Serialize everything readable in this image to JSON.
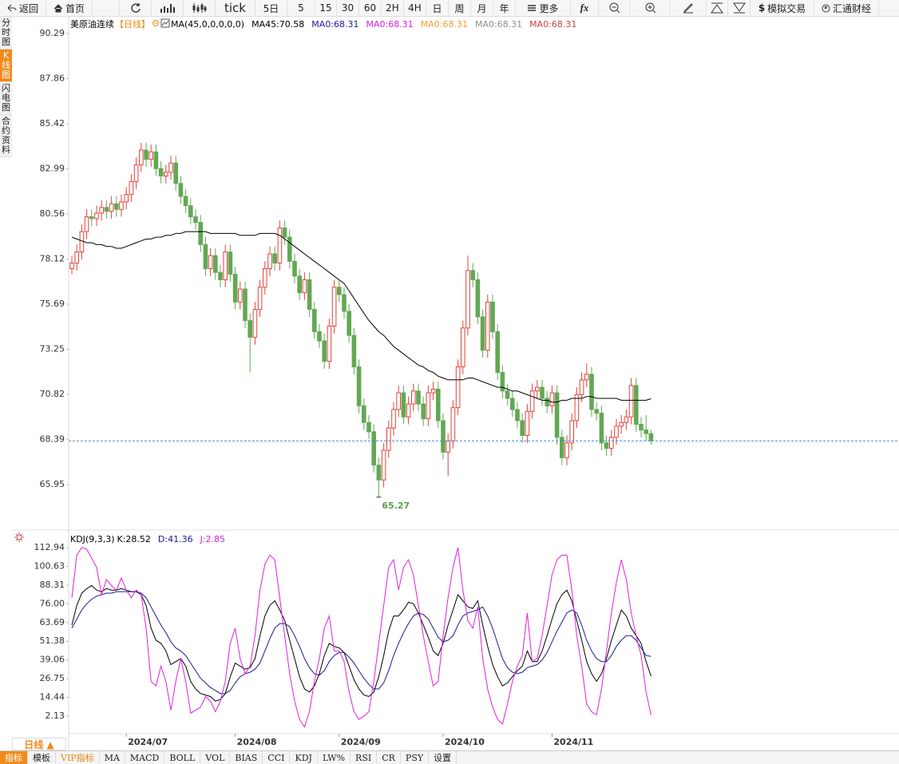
{
  "toolbar": [
    "返回",
    "首页",
    "tick",
    "5日",
    "5",
    "15",
    "30",
    "60",
    "2H",
    "4H",
    "日",
    "周",
    "月",
    "年",
    "更多",
    "模拟交易",
    "汇通财经"
  ],
  "side_tabs": [
    "分时图",
    "K线图",
    "闪电图",
    "合约资料"
  ],
  "bottom": {
    "period": "日线 ▲",
    "tabs": [
      "指标",
      "模板",
      "VIP指标",
      "MA",
      "MACD",
      "BOLL",
      "VOL",
      "BIAS",
      "CCI",
      "KDJ",
      "LW%",
      "RSI",
      "CR",
      "PSY",
      "设置"
    ]
  },
  "chart_data": [
    {
      "type": "candlestick",
      "title": "美原油连续",
      "period": "【日线】",
      "legend": [
        {
          "text": "MA(45,0,0,0,0,0)",
          "color": "#000000"
        },
        {
          "text": "MA0:68.31",
          "color": "#1a1aa6"
        },
        {
          "text": "MA0:68.31",
          "color": "#e020e0"
        },
        {
          "text": "MA0:68.31",
          "color": "#f0a030"
        },
        {
          "text": "MA0:68.31",
          "color": "#909090"
        },
        {
          "text": "MA0:68.31",
          "color": "#d04040"
        }
      ],
      "up_color": "#e0433b",
      "down_color": "#62a854",
      "categories": [
        null,
        null,
        null,
        null,
        null,
        null,
        null,
        null,
        null,
        null,
        null,
        "2024/07",
        null,
        null,
        null,
        null,
        null,
        null,
        null,
        null,
        null,
        null,
        null,
        null,
        null,
        null,
        null,
        null,
        null,
        null,
        null,
        null,
        null,
        "2024/08",
        null,
        null,
        null,
        null,
        null,
        null,
        null,
        null,
        null,
        null,
        null,
        null,
        null,
        null,
        null,
        null,
        null,
        null,
        null,
        null,
        "2024/09",
        null,
        null,
        null,
        null,
        null,
        null,
        null,
        null,
        null,
        null,
        null,
        null,
        null,
        null,
        null,
        null,
        null,
        null,
        null,
        null,
        "2024/10",
        null,
        null,
        null,
        null,
        null,
        null,
        null,
        null,
        null,
        null,
        null,
        null,
        null,
        null,
        null,
        null,
        null,
        null,
        null,
        null,
        null,
        "2024/11",
        null,
        null,
        null,
        null,
        null,
        null,
        null,
        null,
        null,
        null,
        null,
        null,
        null,
        null,
        null,
        null,
        null,
        null,
        null,
        null
      ],
      "open": [
        77.6,
        77.9,
        78.5,
        79.6,
        80.4,
        80.3,
        80.6,
        80.9,
        80.7,
        81.1,
        80.8,
        81.2,
        81.6,
        82.3,
        83.2,
        84.0,
        83.5,
        83.9,
        83.0,
        82.6,
        82.8,
        83.3,
        82.2,
        81.5,
        81.0,
        80.4,
        80.1,
        78.9,
        77.6,
        78.3,
        77.4,
        77.0,
        78.5,
        77.3,
        75.8,
        76.5,
        74.8,
        73.9,
        75.4,
        76.6,
        77.6,
        78.4,
        77.9,
        79.8,
        79.3,
        78.0,
        77.2,
        76.3,
        77.0,
        75.4,
        74.2,
        73.7,
        72.6,
        74.5,
        76.6,
        76.2,
        75.3,
        74.0,
        72.3,
        70.2,
        69.3,
        68.8,
        67.0,
        66.2,
        67.8,
        69.0,
        70.0,
        70.9,
        69.6,
        70.3,
        71.0,
        70.3,
        69.5,
        70.9,
        71.1,
        69.4,
        67.7,
        68.3,
        70.1,
        72.3,
        74.4,
        77.5,
        77.0,
        75.0,
        73.2,
        75.8,
        74.2,
        72.0,
        71.0,
        70.6,
        70.0,
        69.4,
        68.6,
        69.9,
        71.0,
        71.2,
        70.6,
        70.2,
        70.9,
        68.5,
        67.4,
        68.2,
        69.4,
        70.8,
        71.6,
        71.9,
        70.0,
        69.8,
        68.2,
        67.9,
        68.5,
        69.1,
        69.3,
        69.6,
        71.3,
        69.2,
        68.9,
        68.7
      ],
      "high": [
        78.3,
        78.9,
        80.0,
        80.8,
        80.8,
        81.0,
        81.3,
        81.3,
        81.5,
        81.5,
        81.6,
        82.0,
        82.7,
        83.6,
        84.4,
        84.4,
        84.3,
        84.3,
        83.4,
        83.2,
        83.7,
        83.7,
        82.6,
        81.9,
        81.4,
        80.8,
        80.5,
        79.3,
        78.7,
        78.7,
        77.8,
        78.9,
        78.9,
        77.7,
        76.9,
        76.9,
        75.2,
        75.8,
        77.0,
        78.0,
        78.8,
        78.8,
        80.2,
        80.2,
        79.7,
        78.4,
        77.6,
        77.4,
        77.4,
        75.8,
        74.6,
        74.1,
        74.9,
        77.0,
        77.0,
        76.6,
        75.7,
        74.4,
        72.7,
        70.6,
        69.7,
        69.2,
        67.4,
        68.2,
        69.4,
        70.4,
        71.3,
        71.3,
        70.7,
        71.4,
        71.4,
        70.7,
        71.3,
        71.5,
        71.5,
        69.8,
        68.7,
        70.5,
        72.7,
        74.8,
        78.3,
        77.9,
        77.4,
        75.4,
        76.2,
        76.2,
        74.6,
        72.4,
        71.4,
        71.0,
        70.4,
        69.8,
        70.3,
        71.4,
        71.6,
        71.6,
        71.0,
        71.3,
        71.3,
        68.9,
        68.6,
        69.8,
        71.2,
        72.0,
        72.5,
        72.3,
        70.4,
        70.2,
        68.6,
        68.9,
        69.5,
        69.7,
        70.0,
        71.7,
        71.7,
        69.6,
        69.7,
        68.9
      ],
      "low": [
        77.3,
        77.5,
        78.1,
        79.2,
        79.9,
        79.9,
        80.2,
        80.3,
        80.3,
        80.4,
        80.4,
        80.8,
        81.2,
        81.9,
        82.8,
        83.1,
        83.1,
        82.6,
        82.2,
        82.2,
        82.4,
        81.8,
        81.1,
        80.6,
        80.0,
        79.7,
        78.5,
        77.2,
        77.2,
        77.0,
        76.6,
        76.6,
        76.9,
        75.4,
        75.4,
        74.4,
        72.0,
        73.5,
        75.0,
        76.2,
        77.2,
        77.5,
        77.5,
        78.9,
        77.6,
        76.8,
        75.9,
        75.9,
        75.0,
        73.8,
        73.3,
        72.2,
        72.2,
        74.1,
        75.8,
        74.9,
        73.6,
        71.9,
        69.8,
        68.9,
        68.4,
        66.6,
        65.27,
        65.8,
        67.4,
        68.6,
        69.6,
        69.2,
        69.2,
        69.9,
        69.9,
        69.1,
        69.1,
        70.5,
        69.0,
        67.3,
        66.4,
        67.9,
        69.7,
        71.9,
        74.0,
        76.6,
        74.6,
        72.8,
        72.8,
        73.8,
        71.6,
        70.6,
        70.2,
        69.6,
        69.0,
        68.2,
        68.2,
        69.5,
        70.6,
        70.2,
        69.8,
        69.8,
        68.1,
        67.0,
        67.0,
        67.8,
        69.0,
        70.4,
        71.2,
        69.6,
        69.4,
        67.8,
        67.5,
        67.5,
        68.1,
        68.7,
        68.9,
        69.2,
        68.8,
        68.5,
        68.3,
        68.1
      ],
      "close": [
        77.9,
        78.5,
        79.6,
        80.4,
        80.3,
        80.6,
        80.9,
        80.7,
        81.1,
        80.8,
        81.2,
        81.6,
        82.3,
        83.2,
        84.0,
        83.5,
        83.9,
        83.0,
        82.6,
        82.8,
        83.3,
        82.2,
        81.5,
        81.0,
        80.4,
        80.1,
        78.9,
        77.6,
        78.3,
        77.4,
        77.0,
        78.5,
        77.3,
        75.8,
        76.5,
        74.8,
        73.9,
        75.4,
        76.6,
        77.6,
        78.4,
        77.9,
        79.8,
        79.3,
        78.0,
        77.2,
        76.3,
        77.0,
        75.4,
        74.2,
        73.7,
        72.6,
        74.5,
        76.6,
        76.2,
        75.3,
        74.0,
        72.3,
        70.2,
        69.3,
        68.8,
        67.0,
        66.2,
        67.8,
        69.0,
        70.0,
        70.9,
        69.6,
        70.3,
        71.0,
        70.3,
        69.5,
        70.9,
        71.1,
        69.4,
        67.7,
        68.3,
        70.1,
        72.3,
        74.4,
        77.5,
        77.0,
        75.0,
        73.2,
        75.8,
        74.2,
        72.0,
        71.0,
        70.6,
        70.0,
        69.4,
        68.6,
        69.9,
        71.0,
        71.2,
        70.6,
        70.2,
        70.9,
        68.5,
        67.4,
        68.2,
        69.4,
        70.8,
        71.6,
        71.9,
        70.0,
        69.8,
        68.2,
        67.9,
        68.5,
        69.1,
        69.3,
        69.6,
        71.3,
        69.2,
        68.9,
        68.7,
        68.31
      ],
      "series": [
        {
          "name": "MA45:70.58",
          "color": "#000000",
          "values": [
            79.3,
            79.2,
            79.1,
            79.0,
            79.0,
            78.9,
            78.9,
            78.8,
            78.8,
            78.7,
            78.7,
            78.8,
            78.9,
            79.0,
            79.1,
            79.2,
            79.2,
            79.3,
            79.3,
            79.4,
            79.4,
            79.5,
            79.5,
            79.6,
            79.6,
            79.6,
            79.6,
            79.6,
            79.5,
            79.5,
            79.5,
            79.5,
            79.5,
            79.5,
            79.4,
            79.4,
            79.4,
            79.4,
            79.5,
            79.5,
            79.5,
            79.5,
            79.4,
            79.2,
            79.0,
            78.8,
            78.6,
            78.4,
            78.2,
            78.0,
            77.8,
            77.6,
            77.4,
            77.2,
            77.0,
            76.8,
            76.4,
            76.0,
            75.6,
            75.2,
            74.8,
            74.5,
            74.2,
            74.0,
            73.7,
            73.4,
            73.2,
            73.0,
            72.8,
            72.6,
            72.4,
            72.3,
            72.1,
            72.0,
            71.8,
            71.7,
            71.6,
            71.6,
            71.6,
            71.6,
            71.7,
            71.7,
            71.6,
            71.5,
            71.4,
            71.3,
            71.2,
            71.2,
            71.1,
            71.0,
            71.0,
            70.9,
            70.8,
            70.7,
            70.6,
            70.5,
            70.5,
            70.4,
            70.4,
            70.5,
            70.5,
            70.6,
            70.6,
            70.6,
            70.7,
            70.7,
            70.6,
            70.6,
            70.6,
            70.6,
            70.6,
            70.5,
            70.5,
            70.5,
            70.5,
            70.5,
            70.5,
            70.58
          ]
        }
      ],
      "ylim": [
        63.58,
        91.15
      ],
      "yticks": [
        90.29,
        87.86,
        85.42,
        82.99,
        80.56,
        78.12,
        75.69,
        73.25,
        70.82,
        68.39,
        65.95
      ]
    },
    {
      "type": "line",
      "title": "KDJ(9,3,3)",
      "series": [
        {
          "name": "K:28.52",
          "color": "#000000",
          "values": [
            62,
            75,
            83,
            86,
            88,
            85,
            84,
            86,
            85,
            85,
            86,
            85,
            84,
            84,
            82,
            75,
            60,
            52,
            50,
            45,
            36,
            38,
            40,
            35,
            25,
            20,
            17,
            16,
            15,
            12,
            13,
            17,
            28,
            37,
            35,
            33,
            34,
            40,
            55,
            68,
            75,
            78,
            72,
            65,
            52,
            40,
            28,
            20,
            18,
            22,
            30,
            42,
            50,
            48,
            47,
            44,
            35,
            26,
            20,
            16,
            15,
            18,
            28,
            42,
            58,
            68,
            68,
            72,
            77,
            76,
            70,
            62,
            54,
            45,
            42,
            50,
            62,
            72,
            82,
            78,
            74,
            73,
            78,
            62,
            48,
            36,
            28,
            22,
            24,
            28,
            32,
            35,
            45,
            38,
            38,
            45,
            55,
            66,
            76,
            82,
            85,
            78,
            65,
            52,
            38,
            30,
            25,
            30,
            40,
            52,
            62,
            72,
            68,
            60,
            55,
            50,
            38,
            28.52
          ]
        },
        {
          "name": "D:41.36",
          "color": "#1a1a8c",
          "values": [
            60,
            66,
            72,
            76,
            79,
            81,
            82,
            83,
            83,
            84,
            84,
            84,
            84,
            84,
            83,
            80,
            74,
            68,
            62,
            57,
            51,
            47,
            45,
            42,
            37,
            32,
            27,
            24,
            21,
            19,
            17,
            17,
            19,
            24,
            28,
            30,
            31,
            33,
            37,
            45,
            53,
            60,
            63,
            63,
            61,
            55,
            48,
            40,
            34,
            30,
            29,
            32,
            38,
            42,
            44,
            44,
            41,
            37,
            32,
            27,
            23,
            20,
            20,
            24,
            32,
            42,
            50,
            57,
            63,
            68,
            70,
            69,
            66,
            60,
            54,
            51,
            52,
            55,
            62,
            68,
            70,
            71,
            72,
            74,
            68,
            60,
            50,
            40,
            34,
            31,
            30,
            31,
            34,
            35,
            36,
            39,
            44,
            51,
            58,
            64,
            70,
            72,
            70,
            62,
            52,
            45,
            40,
            38,
            38,
            42,
            48,
            52,
            55,
            55,
            52,
            47,
            42,
            41.36
          ]
        },
        {
          "name": "J:2.85",
          "color": "#e020e0",
          "values": [
            80,
            108,
            113,
            112,
            106,
            100,
            82,
            92,
            88,
            85,
            93,
            85,
            80,
            85,
            82,
            60,
            25,
            22,
            35,
            25,
            6,
            25,
            40,
            25,
            4,
            6,
            8,
            15,
            12,
            5,
            12,
            25,
            50,
            60,
            40,
            30,
            35,
            55,
            85,
            102,
            108,
            105,
            80,
            55,
            30,
            12,
            0,
            -5,
            5,
            25,
            40,
            60,
            68,
            45,
            45,
            38,
            18,
            5,
            0,
            2,
            5,
            25,
            50,
            75,
            100,
            105,
            85,
            100,
            105,
            95,
            75,
            55,
            38,
            22,
            25,
            55,
            80,
            100,
            113,
            85,
            65,
            60,
            74,
            40,
            20,
            8,
            0,
            -3,
            10,
            25,
            35,
            42,
            70,
            38,
            40,
            55,
            75,
            95,
            105,
            108,
            108,
            85,
            55,
            35,
            10,
            5,
            3,
            20,
            45,
            70,
            90,
            105,
            92,
            70,
            55,
            42,
            18,
            2.85
          ]
        }
      ],
      "ylim": [
        -8.9,
        122.4
      ],
      "yticks": [
        112.94,
        100.63,
        88.31,
        {
          "value": 76,
          "label": "76.00"
        },
        63.69,
        51.38,
        39.06,
        26.75,
        14.44,
        2.13
      ]
    }
  ]
}
